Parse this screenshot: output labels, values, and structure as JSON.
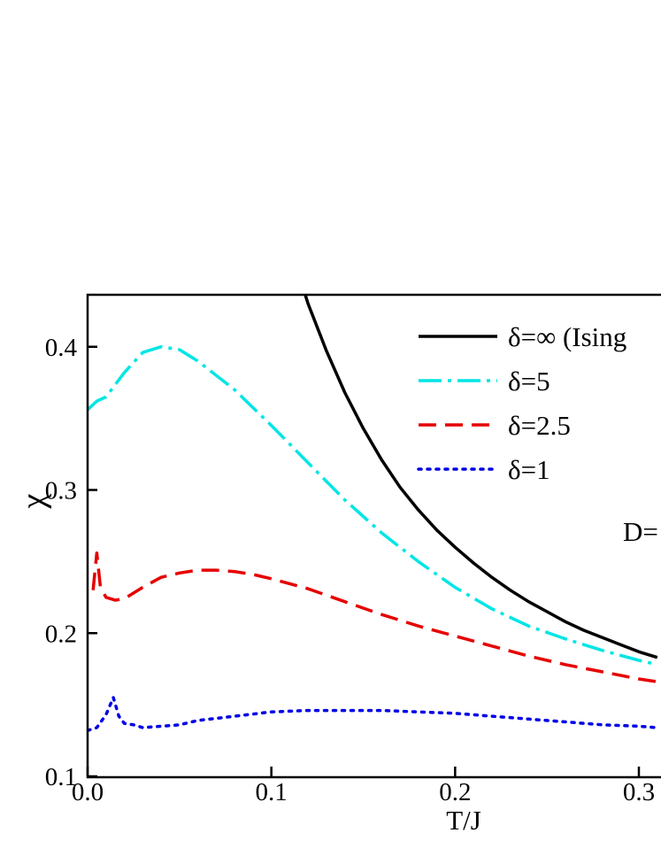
{
  "chart_data": {
    "type": "line",
    "xlabel": "T/J",
    "ylabel": "χ",
    "xlim": [
      0.0,
      0.31
    ],
    "ylim": [
      0.1,
      0.45
    ],
    "xticks": [
      "0.0",
      "0.1",
      "0.2",
      "0.3"
    ],
    "yticks": [
      "0.1",
      "0.2",
      "0.3",
      "0.4"
    ],
    "legend_position": "top-right",
    "annotation": "D=",
    "grid": false,
    "series": [
      {
        "name": "δ=∞ (Ising",
        "color": "#000000",
        "style": "solid",
        "x": [
          0.115,
          0.12,
          0.13,
          0.14,
          0.15,
          0.16,
          0.17,
          0.18,
          0.19,
          0.2,
          0.21,
          0.22,
          0.23,
          0.24,
          0.25,
          0.26,
          0.27,
          0.28,
          0.29,
          0.3,
          0.31
        ],
        "y": [
          0.45,
          0.43,
          0.397,
          0.368,
          0.343,
          0.321,
          0.302,
          0.286,
          0.272,
          0.26,
          0.249,
          0.239,
          0.23,
          0.222,
          0.215,
          0.208,
          0.202,
          0.197,
          0.192,
          0.187,
          0.183
        ]
      },
      {
        "name": "δ=5",
        "color": "#00e5e5",
        "style": "dashdot",
        "x": [
          0.0,
          0.005,
          0.01,
          0.02,
          0.03,
          0.04,
          0.05,
          0.06,
          0.08,
          0.1,
          0.12,
          0.14,
          0.16,
          0.18,
          0.2,
          0.22,
          0.24,
          0.26,
          0.28,
          0.3,
          0.31
        ],
        "y": [
          0.356,
          0.362,
          0.365,
          0.382,
          0.396,
          0.4,
          0.398,
          0.39,
          0.37,
          0.345,
          0.319,
          0.293,
          0.27,
          0.25,
          0.232,
          0.217,
          0.205,
          0.196,
          0.188,
          0.181,
          0.178
        ]
      },
      {
        "name": "δ=2.5",
        "color": "#e60000",
        "style": "dashed",
        "x": [
          0.003,
          0.005,
          0.007,
          0.01,
          0.015,
          0.02,
          0.03,
          0.04,
          0.05,
          0.06,
          0.07,
          0.08,
          0.09,
          0.1,
          0.12,
          0.14,
          0.16,
          0.18,
          0.2,
          0.22,
          0.24,
          0.26,
          0.28,
          0.3,
          0.31
        ],
        "y": [
          0.23,
          0.256,
          0.232,
          0.225,
          0.223,
          0.224,
          0.232,
          0.239,
          0.242,
          0.244,
          0.244,
          0.243,
          0.241,
          0.238,
          0.231,
          0.222,
          0.213,
          0.205,
          0.198,
          0.191,
          0.184,
          0.178,
          0.173,
          0.168,
          0.166
        ]
      },
      {
        "name": "δ=1",
        "color": "#0000e6",
        "style": "dotted",
        "x": [
          0.0,
          0.005,
          0.01,
          0.014,
          0.017,
          0.02,
          0.025,
          0.03,
          0.04,
          0.05,
          0.06,
          0.08,
          0.1,
          0.12,
          0.14,
          0.16,
          0.18,
          0.2,
          0.22,
          0.24,
          0.26,
          0.28,
          0.3,
          0.31
        ],
        "y": [
          0.132,
          0.134,
          0.143,
          0.155,
          0.142,
          0.137,
          0.136,
          0.134,
          0.135,
          0.136,
          0.139,
          0.142,
          0.145,
          0.146,
          0.146,
          0.146,
          0.145,
          0.144,
          0.142,
          0.14,
          0.138,
          0.136,
          0.135,
          0.134
        ]
      }
    ]
  }
}
